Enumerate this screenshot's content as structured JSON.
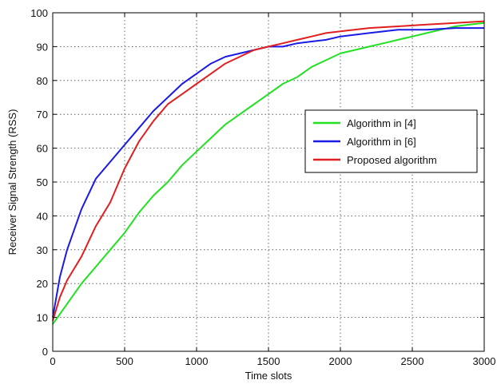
{
  "chart_data": {
    "type": "line",
    "title": "",
    "xlabel": "Time slots",
    "ylabel": "Receiver Signal Strength (RSS)",
    "xlim": [
      0,
      3000
    ],
    "ylim": [
      0,
      100
    ],
    "xticks": [
      0,
      500,
      1000,
      1500,
      2000,
      2500,
      3000
    ],
    "yticks": [
      0,
      10,
      20,
      30,
      40,
      50,
      60,
      70,
      80,
      90,
      100
    ],
    "grid": true,
    "legend_position": "right",
    "series": [
      {
        "name": "Algorithm in [4]",
        "color": "#22e022",
        "x": [
          0,
          100,
          200,
          300,
          400,
          500,
          600,
          700,
          800,
          900,
          1000,
          1100,
          1200,
          1300,
          1400,
          1500,
          1600,
          1700,
          1800,
          1900,
          2000,
          2100,
          2200,
          2300,
          2400,
          2500,
          2600,
          2700,
          2800,
          2900,
          3000
        ],
        "y": [
          8,
          14,
          20,
          25,
          30,
          35,
          41,
          46,
          50,
          55,
          59,
          63,
          67,
          70,
          73,
          76,
          79,
          81,
          84,
          86,
          88,
          89,
          90,
          91,
          92,
          93,
          94,
          95,
          96,
          96.5,
          97
        ]
      },
      {
        "name": "Algorithm in [6]",
        "color": "#1a1ae6",
        "x": [
          0,
          50,
          100,
          200,
          300,
          400,
          500,
          600,
          700,
          800,
          900,
          1000,
          1100,
          1200,
          1300,
          1400,
          1500,
          1600,
          1700,
          1800,
          1900,
          2000,
          2200,
          2400,
          2600,
          2800,
          3000
        ],
        "y": [
          10,
          22,
          30,
          42,
          51,
          56,
          61,
          66,
          71,
          75,
          79,
          82,
          85,
          87,
          88,
          89,
          90,
          90,
          91,
          91.5,
          92,
          93,
          94,
          95,
          95,
          95.5,
          95.5
        ]
      },
      {
        "name": "Proposed algorithm",
        "color": "#e02020",
        "x": [
          0,
          50,
          100,
          200,
          300,
          400,
          500,
          600,
          700,
          800,
          900,
          1000,
          1100,
          1200,
          1300,
          1400,
          1500,
          1600,
          1700,
          1800,
          1900,
          2000,
          2200,
          2400,
          2600,
          2800,
          3000
        ],
        "y": [
          9,
          16,
          21,
          28,
          37,
          44,
          54,
          62,
          68,
          73,
          76,
          79,
          82,
          85,
          87,
          89,
          90,
          91,
          92,
          93,
          94,
          94.5,
          95.5,
          96,
          96.5,
          97,
          97.5
        ]
      }
    ]
  }
}
